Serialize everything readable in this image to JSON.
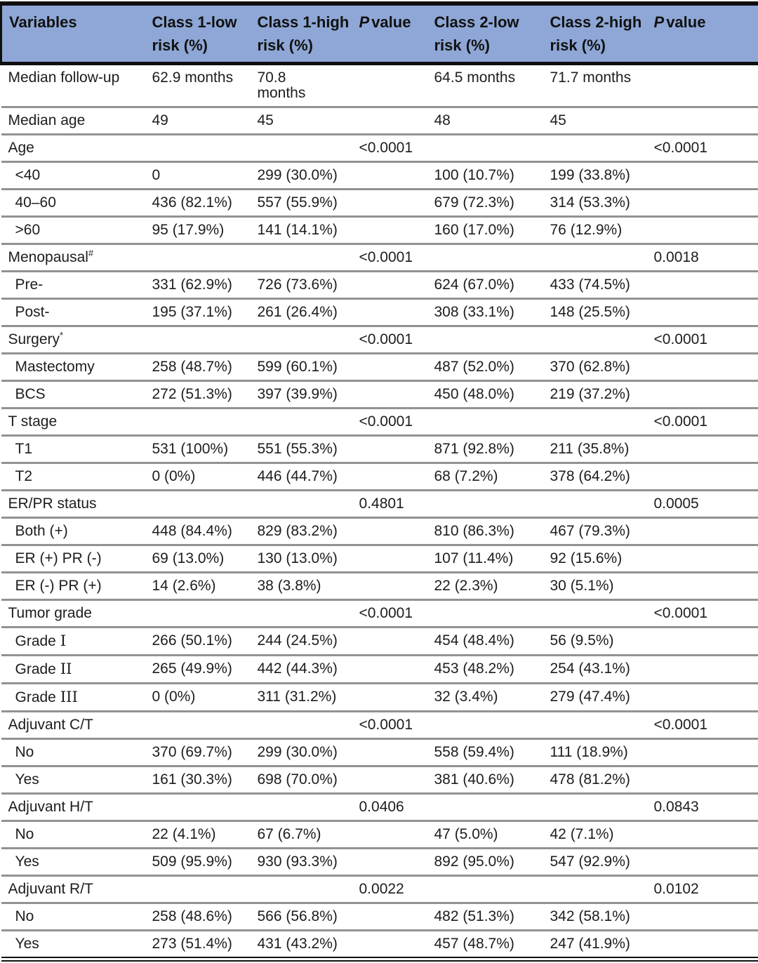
{
  "colors": {
    "header_bg": "#8ea7d6",
    "header_text": "#111111",
    "body_text": "#1d1d1d",
    "rule_gray": "#929292",
    "border_black": "#0f0f0f"
  },
  "table": {
    "header": {
      "variables": "Variables",
      "class1_low": "Class 1-low\nrisk (%)",
      "class1_high": "Class 1-high\nrisk (%)",
      "p1_italic": "P",
      "p1_rest": "value",
      "class2_low": "Class 2-low\nrisk (%)",
      "class2_high": "Class 2-high\nrisk (%)",
      "p2_italic": "P",
      "p2_rest": "value"
    },
    "rows": [
      {
        "label": "Median follow-up",
        "indent": false,
        "cells": [
          "62.9 months",
          "70.8\nmonths",
          "",
          "64.5 months",
          "71.7 months",
          ""
        ]
      },
      {
        "label": "Median age",
        "indent": false,
        "cells": [
          "49",
          "45",
          "",
          "48",
          "45",
          ""
        ]
      },
      {
        "label": "Age",
        "indent": false,
        "cells": [
          "",
          "",
          "<0.0001",
          "",
          "",
          "<0.0001"
        ]
      },
      {
        "label": "<40",
        "indent": true,
        "cells": [
          "0",
          "299 (30.0%)",
          "",
          "100 (10.7%)",
          "199 (33.8%)",
          ""
        ]
      },
      {
        "label": "40–60",
        "indent": true,
        "cells": [
          "436 (82.1%)",
          "557 (55.9%)",
          "",
          "679 (72.3%)",
          "314 (53.3%)",
          ""
        ]
      },
      {
        "label": ">60",
        "indent": true,
        "cells": [
          "95 (17.9%)",
          "141 (14.1%)",
          "",
          "160 (17.0%)",
          "76 (12.9%)",
          ""
        ]
      },
      {
        "label": "Menopausal",
        "indent": false,
        "sup": "#",
        "cells": [
          "",
          "",
          "<0.0001",
          "",
          "",
          "0.0018"
        ]
      },
      {
        "label": "Pre-",
        "indent": true,
        "cells": [
          "331 (62.9%)",
          "726 (73.6%)",
          "",
          "624 (67.0%)",
          "433 (74.5%)",
          ""
        ]
      },
      {
        "label": "Post-",
        "indent": true,
        "cells": [
          "195 (37.1%)",
          "261 (26.4%)",
          "",
          "308 (33.1%)",
          "148 (25.5%)",
          ""
        ]
      },
      {
        "label": "Surgery",
        "indent": false,
        "sup": "*",
        "cells": [
          "",
          "",
          "<0.0001",
          "",
          "",
          "<0.0001"
        ]
      },
      {
        "label": "Mastectomy",
        "indent": true,
        "cells": [
          "258 (48.7%)",
          "599 (60.1%)",
          "",
          "487 (52.0%)",
          "370 (62.8%)",
          ""
        ]
      },
      {
        "label": "BCS",
        "indent": true,
        "cells": [
          "272 (51.3%)",
          "397 (39.9%)",
          "",
          "450 (48.0%)",
          "219 (37.2%)",
          ""
        ]
      },
      {
        "label": "T stage",
        "indent": false,
        "cells": [
          "",
          "",
          "<0.0001",
          "",
          "",
          "<0.0001"
        ]
      },
      {
        "label": "T1",
        "indent": true,
        "cells": [
          "531 (100%)",
          "551 (55.3%)",
          "",
          "871 (92.8%)",
          "211 (35.8%)",
          ""
        ]
      },
      {
        "label": "T2",
        "indent": true,
        "cells": [
          "0 (0%)",
          "446 (44.7%)",
          "",
          "68 (7.2%)",
          "378 (64.2%)",
          ""
        ]
      },
      {
        "label": "ER/PR status",
        "indent": false,
        "cells": [
          "",
          "",
          "0.4801",
          "",
          "",
          "0.0005"
        ]
      },
      {
        "label": "Both (+)",
        "indent": true,
        "cells": [
          "448 (84.4%)",
          "829 (83.2%)",
          "",
          "810 (86.3%)",
          "467 (79.3%)",
          ""
        ]
      },
      {
        "label": "ER (+) PR (-)",
        "indent": true,
        "cells": [
          "69 (13.0%)",
          "130 (13.0%)",
          "",
          "107 (11.4%)",
          "92 (15.6%)",
          ""
        ]
      },
      {
        "label": "ER (-) PR (+)",
        "indent": true,
        "cells": [
          "14 (2.6%)",
          "38 (3.8%)",
          "",
          "22 (2.3%)",
          "30 (5.1%)",
          ""
        ]
      },
      {
        "label": "Tumor grade",
        "indent": false,
        "cells": [
          "",
          "",
          "<0.0001",
          "",
          "",
          "<0.0001"
        ]
      },
      {
        "label": "Grade",
        "indent": true,
        "label_serif": "I",
        "cells": [
          "266 (50.1%)",
          "244 (24.5%)",
          "",
          "454 (48.4%)",
          "56 (9.5%)",
          ""
        ]
      },
      {
        "label": "Grade",
        "indent": true,
        "label_serif": "II",
        "cells": [
          "265 (49.9%)",
          "442 (44.3%)",
          "",
          "453 (48.2%)",
          "254 (43.1%)",
          ""
        ]
      },
      {
        "label": "Grade",
        "indent": true,
        "label_serif": "III",
        "cells": [
          "0 (0%)",
          "311 (31.2%)",
          "",
          "32 (3.4%)",
          "279 (47.4%)",
          ""
        ]
      },
      {
        "label": "Adjuvant C/T",
        "indent": false,
        "cells": [
          "",
          "",
          "<0.0001",
          "",
          "",
          "<0.0001"
        ]
      },
      {
        "label": "No",
        "indent": true,
        "cells": [
          "370 (69.7%)",
          "299 (30.0%)",
          "",
          "558 (59.4%)",
          "111 (18.9%)",
          ""
        ]
      },
      {
        "label": "Yes",
        "indent": true,
        "cells": [
          "161 (30.3%)",
          "698 (70.0%)",
          "",
          "381 (40.6%)",
          "478 (81.2%)",
          ""
        ]
      },
      {
        "label": "Adjuvant H/T",
        "indent": false,
        "cells": [
          "",
          "",
          "0.0406",
          "",
          "",
          "0.0843"
        ]
      },
      {
        "label": "No",
        "indent": true,
        "cells": [
          "22 (4.1%)",
          "67 (6.7%)",
          "",
          "47 (5.0%)",
          "42 (7.1%)",
          ""
        ]
      },
      {
        "label": "Yes",
        "indent": true,
        "cells": [
          "509 (95.9%)",
          "930 (93.3%)",
          "",
          "892 (95.0%)",
          "547 (92.9%)",
          ""
        ]
      },
      {
        "label": "Adjuvant R/T",
        "indent": false,
        "cells": [
          "",
          "",
          "0.0022",
          "",
          "",
          "0.0102"
        ]
      },
      {
        "label": "No",
        "indent": true,
        "cells": [
          "258 (48.6%)",
          "566 (56.8%)",
          "",
          "482 (51.3%)",
          "342 (58.1%)",
          ""
        ]
      },
      {
        "label": "Yes",
        "indent": true,
        "cells": [
          "273 (51.4%)",
          "431 (43.2%)",
          "",
          "457 (48.7%)",
          "247 (41.9%)",
          ""
        ]
      }
    ]
  }
}
